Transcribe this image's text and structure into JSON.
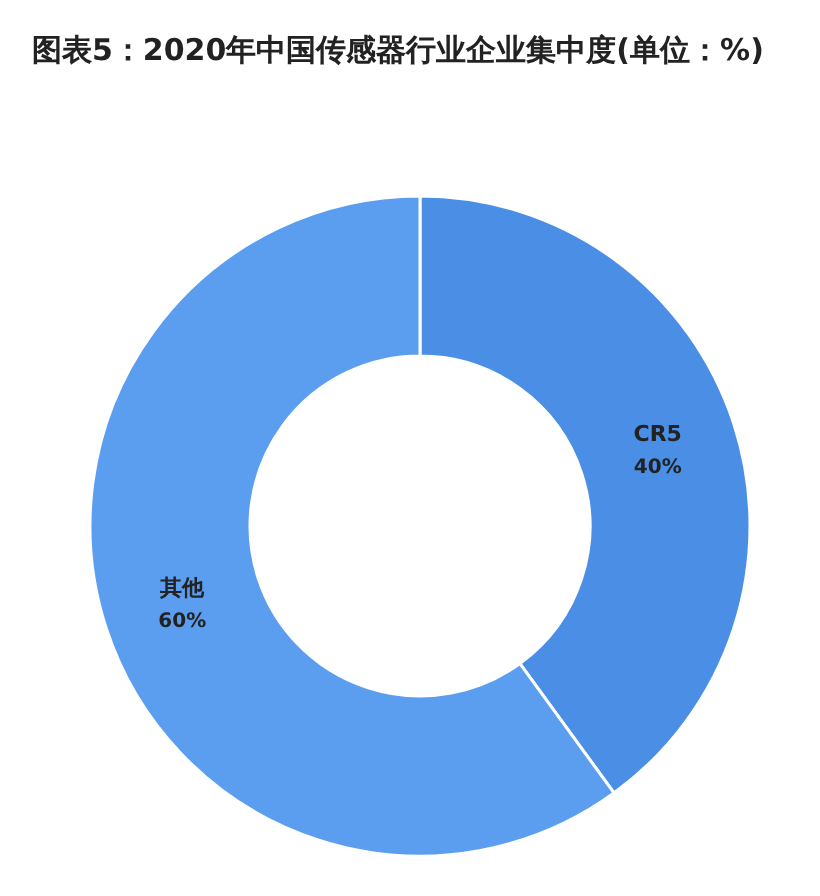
{
  "chart_data": {
    "type": "donut",
    "title": "图表5：2020年中国传感器行业企业集中度(单位：%)",
    "categories": [
      "CR5",
      "其他"
    ],
    "values": [
      40,
      60
    ],
    "value_labels": [
      "40%",
      "60%"
    ],
    "colors": [
      "#4a8ee6",
      "#5b9ef0"
    ]
  }
}
